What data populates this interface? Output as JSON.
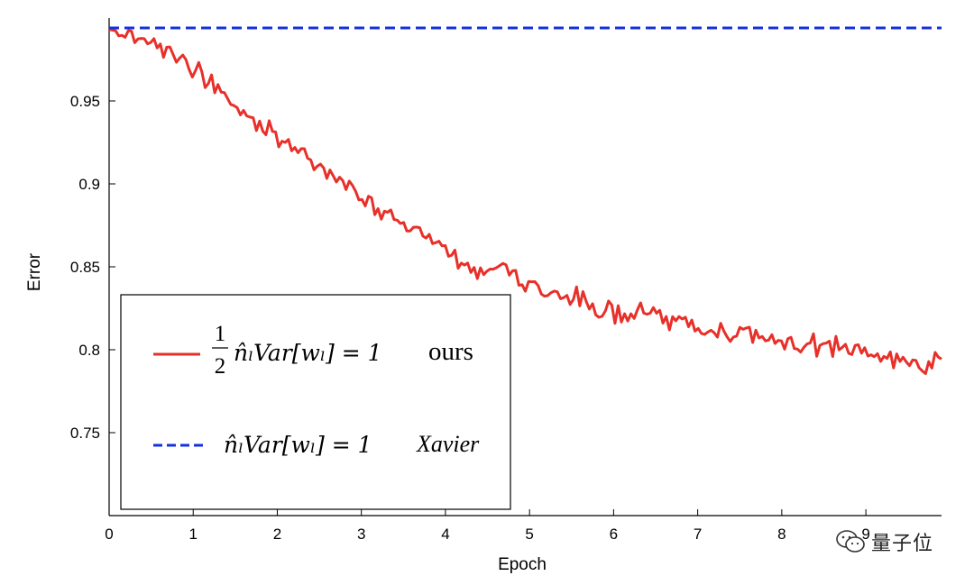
{
  "chart_data": {
    "type": "line",
    "xlabel": "Epoch",
    "ylabel": "Error",
    "xlim": [
      0,
      9.9
    ],
    "ylim": [
      0.7,
      1.0
    ],
    "x_ticks": [
      0,
      1,
      2,
      3,
      4,
      5,
      6,
      7,
      8,
      9
    ],
    "y_ticks": [
      0.75,
      0.8,
      0.85,
      0.9,
      0.95
    ],
    "y_tick_labels": [
      "0.75",
      "0.8",
      "0.85",
      "0.9",
      "0.95"
    ],
    "grid": false,
    "legend_position": "lower-left",
    "series": [
      {
        "name": "ours",
        "legend_expr": "½ n̂ₗVar[wₗ] = 1",
        "color": "#e8302a",
        "style": "solid",
        "x": [
          0,
          0.25,
          0.5,
          0.75,
          1.0,
          1.25,
          1.5,
          1.75,
          2.0,
          2.25,
          2.5,
          2.75,
          3.0,
          3.25,
          3.5,
          3.75,
          4.0,
          4.25,
          4.5,
          4.75,
          5.0,
          5.25,
          5.5,
          5.75,
          6.0,
          6.25,
          6.5,
          6.75,
          7.0,
          7.25,
          7.5,
          7.75,
          8.0,
          8.25,
          8.5,
          8.75,
          9.0,
          9.25,
          9.5,
          9.75,
          9.9
        ],
        "y": [
          0.999,
          0.997,
          0.992,
          0.985,
          0.975,
          0.965,
          0.953,
          0.945,
          0.935,
          0.925,
          0.916,
          0.909,
          0.899,
          0.89,
          0.882,
          0.875,
          0.867,
          0.858,
          0.85,
          0.858,
          0.845,
          0.84,
          0.838,
          0.832,
          0.829,
          0.83,
          0.827,
          0.822,
          0.821,
          0.818,
          0.815,
          0.813,
          0.812,
          0.81,
          0.808,
          0.806,
          0.804,
          0.802,
          0.8,
          0.797,
          0.796
        ],
        "noise": 0.0045
      },
      {
        "name": "Xavier",
        "legend_expr": "n̂ₗVar[wₗ] = 1",
        "color": "#1430e0",
        "style": "dashed",
        "x": [
          0,
          9.9
        ],
        "y": [
          1.0,
          1.0
        ]
      }
    ]
  },
  "legend": {
    "ours": {
      "frac_num": "1",
      "frac_den": "2",
      "expr": "n̂ₗVar[wₗ] = 1",
      "tag": "ours"
    },
    "xavier": {
      "expr": "n̂ₗVar[wₗ] = 1",
      "tag": "Xavier"
    }
  },
  "watermark": {
    "text": "量子位",
    "icon": "wechat-icon"
  }
}
